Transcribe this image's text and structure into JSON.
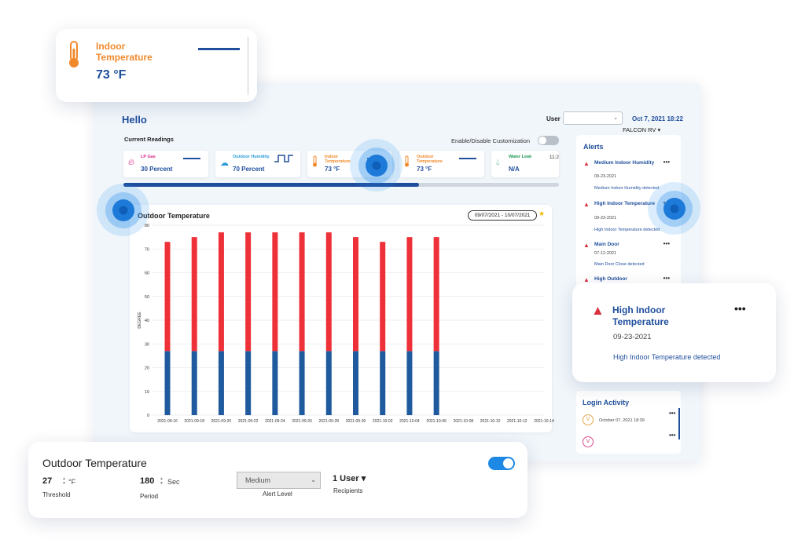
{
  "header": {
    "greeting": "Hello",
    "user_label": "User",
    "datetime": "Oct 7, 2021 18:22",
    "site": "FALCON RV ▾"
  },
  "readings": {
    "title": "Current Readings",
    "customize_label": "Enable/Disable Customization",
    "cards": [
      {
        "name": "LP Gas",
        "value": "30 Percent",
        "icon": "flame-icon",
        "color": "#e0288c"
      },
      {
        "name": "Outdoor Humidity",
        "value": "70 Percent",
        "icon": "cloud-icon",
        "color": "#2a9ad8"
      },
      {
        "name": "Indoor Temperature",
        "value": "73 °F",
        "icon": "thermometer-icon",
        "color": "#f0892b"
      },
      {
        "name": "Outdoor Temperature",
        "value": "73 °F",
        "icon": "thermometer-icon",
        "color": "#f0892b"
      },
      {
        "name": "Water Leak",
        "value": "N/A",
        "icon": "droplet-icon",
        "color": "#1c9a55",
        "time": "11:2"
      }
    ]
  },
  "chart_card": {
    "title": "Outdoor Temperature",
    "date_range": "09/07/2021 - 10/07/2021"
  },
  "chart_data": {
    "type": "bar",
    "stacked": true,
    "ylabel": "DEGREE",
    "ylim": [
      0,
      80
    ],
    "yticks": [
      0,
      10,
      20,
      30,
      40,
      50,
      60,
      70,
      80
    ],
    "categories": [
      "2021-09-16",
      "2021-09-18",
      "2021-09-20",
      "2021-09-22",
      "2021-09-24",
      "2021-09-26",
      "2021-09-28",
      "2021-09-30",
      "2021-10-02",
      "2021-10-04",
      "2021-10-06",
      "2021-10-08",
      "2021-10-10",
      "2021-10-12",
      "2021-10-14"
    ],
    "series": [
      {
        "color": "#1f5a9e",
        "values": [
          27,
          27,
          27,
          27,
          27,
          27,
          27,
          27,
          27,
          27,
          27,
          null,
          null,
          null,
          null
        ]
      },
      {
        "color": "#ee3038",
        "values": [
          46,
          48,
          50,
          50,
          50,
          50,
          50,
          48,
          46,
          48,
          48,
          null,
          null,
          null,
          null
        ]
      }
    ],
    "grid": true
  },
  "alerts": {
    "title": "Alerts",
    "items": [
      {
        "name": "Medium Indoor Humidity",
        "date": "09-23-2021",
        "desc": "Medium Indoor Humidity detected"
      },
      {
        "name": "High Indoor Temperature",
        "date": "09-23-2021",
        "desc": "High Indoor Temperature detected"
      },
      {
        "name": "Main Door",
        "date": "07-12-2021",
        "desc": "Main Door Close detected"
      },
      {
        "name": "High Outdoor",
        "date": "",
        "desc": ""
      }
    ],
    "more": "•••"
  },
  "login_activity": {
    "title": "Login Activity",
    "entries": [
      {
        "initial": "V",
        "date": "October 07, 2021 18:39"
      },
      {
        "initial": "V",
        "date": ""
      }
    ]
  },
  "indoor_card": {
    "title": "Indoor Temperature",
    "value": "73 °F"
  },
  "alert_card": {
    "title": "High Indoor Temperature",
    "date": "09-23-2021",
    "desc": "High Indoor Temperature detected"
  },
  "settings_card": {
    "title": "Outdoor Temperature",
    "threshold_value": "27",
    "threshold_unit": "°F",
    "threshold_label": "Threshold",
    "period_value": "180",
    "period_unit": "Sec",
    "period_label": "Period",
    "alert_level": "Medium",
    "alert_level_label": "Alert Level",
    "recipients_value": "1 User ▾",
    "recipients_label": "Recipients",
    "enabled": true
  }
}
